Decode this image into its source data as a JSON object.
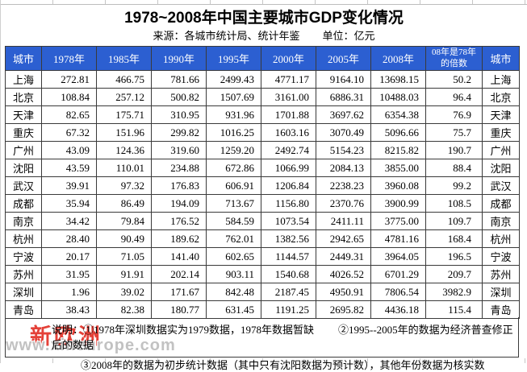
{
  "title": "1978~2008年中国主要城市GDP变化情况",
  "source": "来源：各城市统计局、统计年鉴",
  "unit": "单位：亿元",
  "colors": {
    "header_bg": "#2c5fd1",
    "header_text": "#ffffff",
    "table_border": "#3a3a3a",
    "watermark_red": "#e23128",
    "watermark_gray": "#bfbfbf"
  },
  "chart_data": {
    "type": "table",
    "title": "1978~2008年中国主要城市GDP变化情况",
    "source": "来源：各城市统计局、统计年鉴",
    "unit": "单位：亿元",
    "columns": [
      "城市",
      "1978年",
      "1985年",
      "1990年",
      "1995年",
      "2000年",
      "2005年",
      "2008年",
      "08年是78年的倍数",
      "城市"
    ],
    "rows": [
      {
        "city": "上海",
        "values": [
          "272.81",
          "466.75",
          "781.66",
          "2499.43",
          "4771.17",
          "9164.10",
          "13698.15"
        ],
        "multiple": "50.2"
      },
      {
        "city": "北京",
        "values": [
          "108.84",
          "257.12",
          "500.82",
          "1507.69",
          "3161.00",
          "6886.31",
          "10488.03"
        ],
        "multiple": "96.4"
      },
      {
        "city": "天津",
        "values": [
          "82.65",
          "175.71",
          "310.95",
          "931.96",
          "1701.88",
          "3697.62",
          "6354.38"
        ],
        "multiple": "76.9"
      },
      {
        "city": "重庆",
        "values": [
          "67.32",
          "151.96",
          "299.82",
          "1016.25",
          "1603.16",
          "3070.49",
          "5096.66"
        ],
        "multiple": "75.7"
      },
      {
        "city": "广州",
        "values": [
          "43.09",
          "124.36",
          "319.60",
          "1259.20",
          "2492.74",
          "5154.23",
          "8215.82"
        ],
        "multiple": "190.7"
      },
      {
        "city": "沈阳",
        "values": [
          "43.59",
          "110.01",
          "234.88",
          "672.86",
          "1066.99",
          "2084.13",
          "3855.00"
        ],
        "multiple": "88.4"
      },
      {
        "city": "武汉",
        "values": [
          "39.91",
          "97.32",
          "176.83",
          "606.91",
          "1206.84",
          "2238.23",
          "3960.08"
        ],
        "multiple": "99.2"
      },
      {
        "city": "成都",
        "values": [
          "35.94",
          "86.49",
          "194.09",
          "713.67",
          "1156.80",
          "2370.76",
          "3900.99"
        ],
        "multiple": "108.5"
      },
      {
        "city": "南京",
        "values": [
          "34.42",
          "79.84",
          "176.52",
          "584.59",
          "1073.54",
          "2411.11",
          "3775.00"
        ],
        "multiple": "109.7"
      },
      {
        "city": "杭州",
        "values": [
          "28.40",
          "90.49",
          "189.62",
          "762.01",
          "1382.56",
          "2942.65",
          "4781.16"
        ],
        "multiple": "168.4"
      },
      {
        "city": "宁波",
        "values": [
          "20.17",
          "71.05",
          "141.40",
          "602.65",
          "1144.57",
          "2449.31",
          "3964.05"
        ],
        "multiple": "196.5"
      },
      {
        "city": "苏州",
        "values": [
          "31.95",
          "91.91",
          "202.14",
          "903.11",
          "1540.68",
          "4026.52",
          "6701.29"
        ],
        "multiple": "209.7"
      },
      {
        "city": "深圳",
        "values": [
          "1.96",
          "39.02",
          "171.67",
          "842.48",
          "2187.45",
          "4950.91",
          "7806.54"
        ],
        "multiple": "3982.9"
      },
      {
        "city": "青岛",
        "values": [
          "38.43",
          "82.38",
          "180.77",
          "631.45",
          "1191.25",
          "2695.82",
          "4436.18"
        ],
        "multiple": "115.4"
      }
    ]
  },
  "notes": {
    "line1_left": "说明：①1978年深圳数据实为1979数据，1978年数据暂缺",
    "line1_right": "②1995--2005年的数据为经济普查修正后的数据",
    "line2": "③2008年的数据为初步统计数据（其中只有沈阳数据为预计数），其他年份数据为核实数"
  },
  "watermark": {
    "logo": "新欧洲",
    "url": "www.xineurope.com"
  }
}
